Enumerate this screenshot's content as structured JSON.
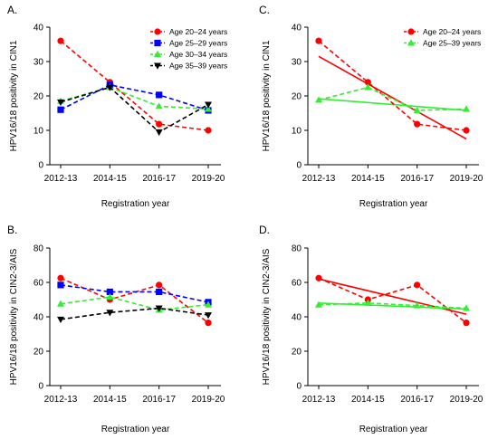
{
  "chart_data": [
    {
      "panel": "A.",
      "type": "line",
      "xlabel": "Registration year",
      "ylabel": "HPV16/18 positivity in CIN1",
      "categories": [
        "2012-13",
        "2014-15",
        "2016-17",
        "2019-20"
      ],
      "ylim": [
        0,
        40
      ],
      "yticks": [
        "0",
        "10",
        "20",
        "30",
        "40"
      ],
      "legend_position": "top-right",
      "series": [
        {
          "name": "Age 20–24 years",
          "color": "#ff0000",
          "marker": "circle",
          "values": [
            36,
            24,
            11.8,
            10
          ]
        },
        {
          "name": "Age 25–29 years",
          "color": "#0000ff",
          "marker": "square",
          "values": [
            16,
            23.2,
            20.3,
            15.8
          ]
        },
        {
          "name": "Age 30–34 years",
          "color": "#33ee33",
          "marker": "triangle-up",
          "values": [
            18.5,
            22.5,
            17,
            16.2
          ]
        },
        {
          "name": "Age 35–39 years",
          "color": "#000000",
          "marker": "triangle-down",
          "values": [
            18.2,
            22.5,
            9.5,
            17.5
          ]
        }
      ]
    },
    {
      "panel": "B.",
      "type": "line",
      "xlabel": "Registration year",
      "ylabel": "HPV16/18 positivity in CIN2-3/AIS",
      "categories": [
        "2012-13",
        "2014-15",
        "2016-17",
        "2019-20"
      ],
      "ylim": [
        0,
        80
      ],
      "yticks": [
        "0",
        "20",
        "40",
        "60",
        "80"
      ],
      "series": [
        {
          "name": "Age 20–24 years",
          "color": "#ff0000",
          "marker": "circle",
          "values": [
            62.5,
            50,
            58.5,
            36.5
          ]
        },
        {
          "name": "Age 25–29 years",
          "color": "#0000ff",
          "marker": "square",
          "values": [
            58.5,
            54.5,
            54.5,
            48.5
          ]
        },
        {
          "name": "Age 30–34 years",
          "color": "#33ee33",
          "marker": "triangle-up",
          "values": [
            47.5,
            51.5,
            44,
            47
          ]
        },
        {
          "name": "Age 35–39 years",
          "color": "#000000",
          "marker": "triangle-down",
          "values": [
            38.5,
            42.5,
            45,
            41
          ]
        }
      ]
    },
    {
      "panel": "C.",
      "type": "line",
      "xlabel": "Registration year",
      "ylabel": "HPV16/18 positivity in CIN1",
      "categories": [
        "2012-13",
        "2014-15",
        "2016-17",
        "2019-20"
      ],
      "ylim": [
        0,
        40
      ],
      "yticks": [
        "0",
        "10",
        "20",
        "30",
        "40"
      ],
      "legend_position": "top-right",
      "series": [
        {
          "name": "Age 20–24 years",
          "color": "#ff0000",
          "marker": "circle",
          "values": [
            36,
            24,
            11.8,
            10
          ],
          "trend": [
            31.5,
            7.5
          ]
        },
        {
          "name": "Age 25–39 years",
          "color": "#33ee33",
          "marker": "triangle-up",
          "values": [
            18.8,
            22.5,
            15.8,
            16.2
          ],
          "trend": [
            19.2,
            15.8
          ]
        }
      ]
    },
    {
      "panel": "D.",
      "type": "line",
      "xlabel": "Registration year",
      "ylabel": "HPV16/18 positivity in CIN2-3/AIS",
      "categories": [
        "2012-13",
        "2014-15",
        "2016-17",
        "2019-20"
      ],
      "ylim": [
        0,
        80
      ],
      "yticks": [
        "0",
        "20",
        "40",
        "60",
        "80"
      ],
      "series": [
        {
          "name": "Age 20–24 years",
          "color": "#ff0000",
          "marker": "circle",
          "values": [
            62.5,
            50,
            58.5,
            36.5
          ],
          "trend": [
            62,
            41.5
          ]
        },
        {
          "name": "Age 25–39 years",
          "color": "#33ee33",
          "marker": "triangle-up",
          "values": [
            47,
            48,
            46.5,
            45
          ],
          "trend": [
            48,
            44.5
          ]
        }
      ]
    }
  ]
}
